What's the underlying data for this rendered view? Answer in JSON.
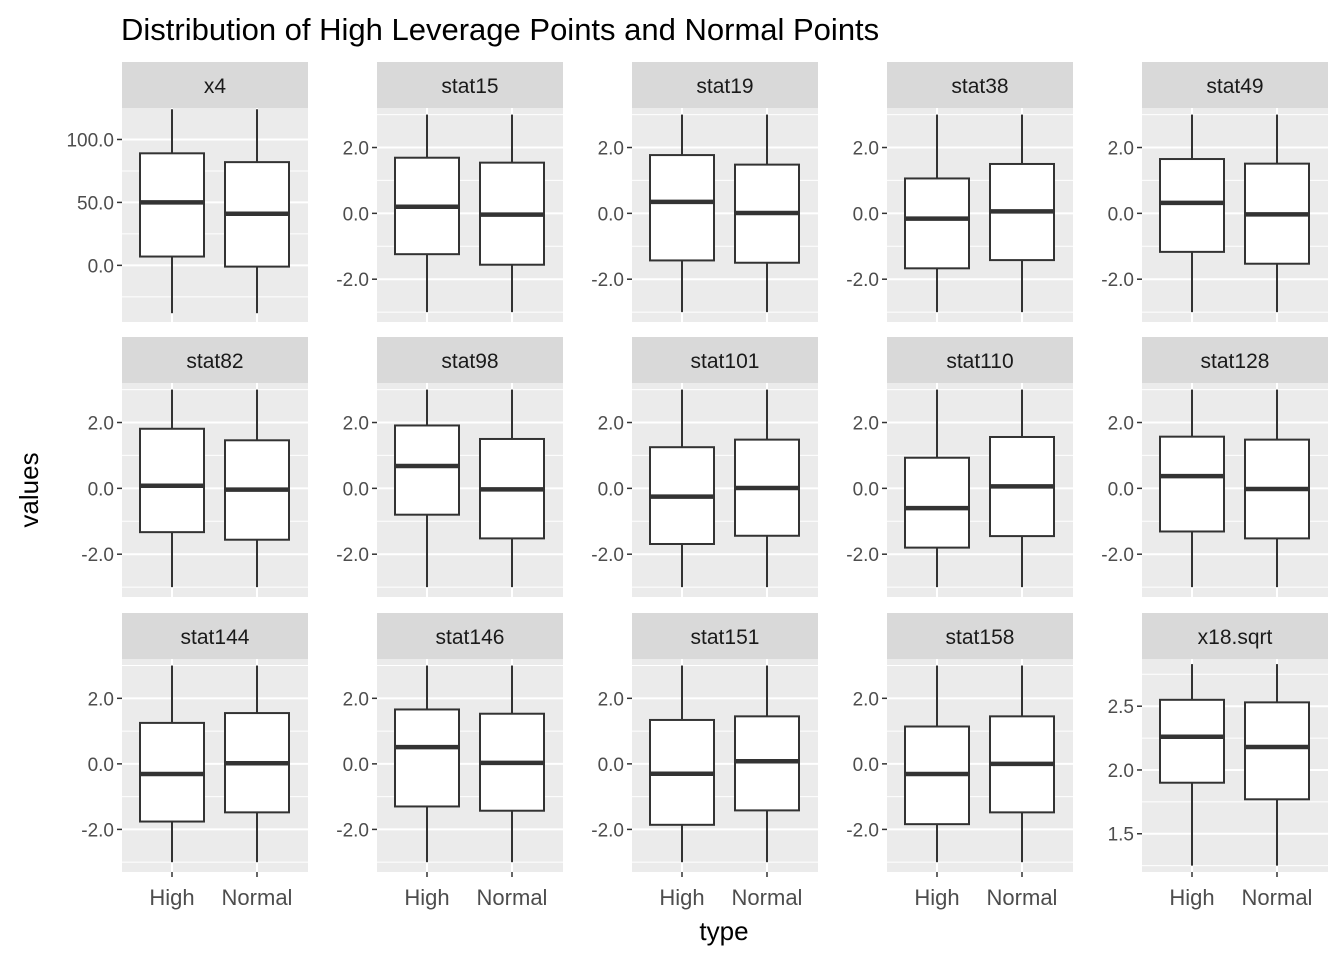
{
  "chart_data": {
    "type": "boxplot",
    "title": "Distribution of High Leverage Points and Normal Points",
    "xlabel": "type",
    "ylabel": "values",
    "categories": [
      "High",
      "Normal"
    ],
    "facet_layout": "5 columns x 3 rows",
    "grid": true,
    "colors": {
      "panel_bg": "#ebebeb",
      "strip_bg": "#d9d9d9",
      "grid": "#ffffff",
      "box_fill": "#ffffff",
      "box_line": "#333333"
    },
    "panels": [
      {
        "name": "x4",
        "ylim": [
          -45,
          125
        ],
        "ticks": [
          0,
          50,
          100
        ],
        "tick_labels": [
          "0.0",
          "50.0",
          "100.0"
        ],
        "boxes": [
          {
            "category": "High",
            "min": -38,
            "q1": 7,
            "median": 50,
            "q3": 89,
            "max": 124
          },
          {
            "category": "Normal",
            "min": -38,
            "q1": -1,
            "median": 41,
            "q3": 82,
            "max": 124
          }
        ]
      },
      {
        "name": "stat15",
        "ylim": [
          -3.3,
          3.2
        ],
        "ticks": [
          -2,
          0,
          2
        ],
        "tick_labels": [
          "-2.0",
          "0.0",
          "2.0"
        ],
        "boxes": [
          {
            "category": "High",
            "min": -3.0,
            "q1": -1.24,
            "median": 0.2,
            "q3": 1.69,
            "max": 3.0
          },
          {
            "category": "Normal",
            "min": -3.0,
            "q1": -1.56,
            "median": -0.04,
            "q3": 1.54,
            "max": 3.0
          }
        ]
      },
      {
        "name": "stat19",
        "ylim": [
          -3.3,
          3.2
        ],
        "ticks": [
          -2,
          0,
          2
        ],
        "tick_labels": [
          "-2.0",
          "0.0",
          "2.0"
        ],
        "boxes": [
          {
            "category": "High",
            "min": -3.0,
            "q1": -1.43,
            "median": 0.35,
            "q3": 1.77,
            "max": 3.0
          },
          {
            "category": "Normal",
            "min": -3.0,
            "q1": -1.5,
            "median": 0.01,
            "q3": 1.48,
            "max": 3.0
          }
        ]
      },
      {
        "name": "stat38",
        "ylim": [
          -3.3,
          3.2
        ],
        "ticks": [
          -2,
          0,
          2
        ],
        "tick_labels": [
          "-2.0",
          "0.0",
          "2.0"
        ],
        "boxes": [
          {
            "category": "High",
            "min": -3.0,
            "q1": -1.67,
            "median": -0.16,
            "q3": 1.06,
            "max": 3.0
          },
          {
            "category": "Normal",
            "min": -3.0,
            "q1": -1.42,
            "median": 0.06,
            "q3": 1.5,
            "max": 3.0
          }
        ]
      },
      {
        "name": "stat49",
        "ylim": [
          -3.3,
          3.2
        ],
        "ticks": [
          -2,
          0,
          2
        ],
        "tick_labels": [
          "-2.0",
          "0.0",
          "2.0"
        ],
        "boxes": [
          {
            "category": "High",
            "min": -3.0,
            "q1": -1.17,
            "median": 0.32,
            "q3": 1.65,
            "max": 3.0
          },
          {
            "category": "Normal",
            "min": -3.0,
            "q1": -1.53,
            "median": -0.03,
            "q3": 1.51,
            "max": 3.0
          }
        ]
      },
      {
        "name": "stat82",
        "ylim": [
          -3.3,
          3.2
        ],
        "ticks": [
          -2,
          0,
          2
        ],
        "tick_labels": [
          "-2.0",
          "0.0",
          "2.0"
        ],
        "boxes": [
          {
            "category": "High",
            "min": -3.0,
            "q1": -1.33,
            "median": 0.08,
            "q3": 1.81,
            "max": 3.0
          },
          {
            "category": "Normal",
            "min": -3.0,
            "q1": -1.56,
            "median": -0.04,
            "q3": 1.46,
            "max": 3.0
          }
        ]
      },
      {
        "name": "stat98",
        "ylim": [
          -3.3,
          3.2
        ],
        "ticks": [
          -2,
          0,
          2
        ],
        "tick_labels": [
          "-2.0",
          "0.0",
          "2.0"
        ],
        "boxes": [
          {
            "category": "High",
            "min": -3.0,
            "q1": -0.8,
            "median": 0.68,
            "q3": 1.91,
            "max": 3.0
          },
          {
            "category": "Normal",
            "min": -3.0,
            "q1": -1.52,
            "median": -0.03,
            "q3": 1.5,
            "max": 3.0
          }
        ]
      },
      {
        "name": "stat101",
        "ylim": [
          -3.3,
          3.2
        ],
        "ticks": [
          -2,
          0,
          2
        ],
        "tick_labels": [
          "-2.0",
          "0.0",
          "2.0"
        ],
        "boxes": [
          {
            "category": "High",
            "min": -3.0,
            "q1": -1.69,
            "median": -0.25,
            "q3": 1.25,
            "max": 3.0
          },
          {
            "category": "Normal",
            "min": -3.0,
            "q1": -1.44,
            "median": 0.01,
            "q3": 1.48,
            "max": 3.0
          }
        ]
      },
      {
        "name": "stat110",
        "ylim": [
          -3.3,
          3.2
        ],
        "ticks": [
          -2,
          0,
          2
        ],
        "tick_labels": [
          "-2.0",
          "0.0",
          "2.0"
        ],
        "boxes": [
          {
            "category": "High",
            "min": -3.0,
            "q1": -1.8,
            "median": -0.6,
            "q3": 0.93,
            "max": 3.0
          },
          {
            "category": "Normal",
            "min": -3.0,
            "q1": -1.45,
            "median": 0.06,
            "q3": 1.56,
            "max": 3.0
          }
        ]
      },
      {
        "name": "stat128",
        "ylim": [
          -3.3,
          3.2
        ],
        "ticks": [
          -2,
          0,
          2
        ],
        "tick_labels": [
          "-2.0",
          "0.0",
          "2.0"
        ],
        "boxes": [
          {
            "category": "High",
            "min": -3.0,
            "q1": -1.31,
            "median": 0.37,
            "q3": 1.57,
            "max": 3.0
          },
          {
            "category": "Normal",
            "min": -3.0,
            "q1": -1.52,
            "median": -0.02,
            "q3": 1.48,
            "max": 3.0
          }
        ]
      },
      {
        "name": "stat144",
        "ylim": [
          -3.3,
          3.2
        ],
        "ticks": [
          -2,
          0,
          2
        ],
        "tick_labels": [
          "-2.0",
          "0.0",
          "2.0"
        ],
        "boxes": [
          {
            "category": "High",
            "min": -3.0,
            "q1": -1.76,
            "median": -0.31,
            "q3": 1.25,
            "max": 3.0
          },
          {
            "category": "Normal",
            "min": -3.0,
            "q1": -1.48,
            "median": 0.02,
            "q3": 1.55,
            "max": 3.0
          }
        ]
      },
      {
        "name": "stat146",
        "ylim": [
          -3.3,
          3.2
        ],
        "ticks": [
          -2,
          0,
          2
        ],
        "tick_labels": [
          "-2.0",
          "0.0",
          "2.0"
        ],
        "boxes": [
          {
            "category": "High",
            "min": -3.0,
            "q1": -1.3,
            "median": 0.51,
            "q3": 1.66,
            "max": 3.0
          },
          {
            "category": "Normal",
            "min": -3.0,
            "q1": -1.43,
            "median": 0.03,
            "q3": 1.53,
            "max": 3.0
          }
        ]
      },
      {
        "name": "stat151",
        "ylim": [
          -3.3,
          3.2
        ],
        "ticks": [
          -2,
          0,
          2
        ],
        "tick_labels": [
          "-2.0",
          "0.0",
          "2.0"
        ],
        "boxes": [
          {
            "category": "High",
            "min": -3.0,
            "q1": -1.86,
            "median": -0.3,
            "q3": 1.34,
            "max": 3.0
          },
          {
            "category": "Normal",
            "min": -3.0,
            "q1": -1.42,
            "median": 0.08,
            "q3": 1.45,
            "max": 3.0
          }
        ]
      },
      {
        "name": "stat158",
        "ylim": [
          -3.3,
          3.2
        ],
        "ticks": [
          -2,
          0,
          2
        ],
        "tick_labels": [
          "-2.0",
          "0.0",
          "2.0"
        ],
        "boxes": [
          {
            "category": "High",
            "min": -3.0,
            "q1": -1.84,
            "median": -0.31,
            "q3": 1.14,
            "max": 3.0
          },
          {
            "category": "Normal",
            "min": -3.0,
            "q1": -1.48,
            "median": 0.0,
            "q3": 1.45,
            "max": 3.0
          }
        ]
      },
      {
        "name": "x18.sqrt",
        "ylim": [
          1.2,
          2.87
        ],
        "ticks": [
          1.5,
          2.0,
          2.5
        ],
        "tick_labels": [
          "1.5",
          "2.0",
          "2.5"
        ],
        "boxes": [
          {
            "category": "High",
            "min": 1.25,
            "q1": 1.9,
            "median": 2.26,
            "q3": 2.55,
            "max": 2.83
          },
          {
            "category": "Normal",
            "min": 1.25,
            "q1": 1.77,
            "median": 2.18,
            "q3": 2.53,
            "max": 2.83
          }
        ]
      }
    ]
  }
}
